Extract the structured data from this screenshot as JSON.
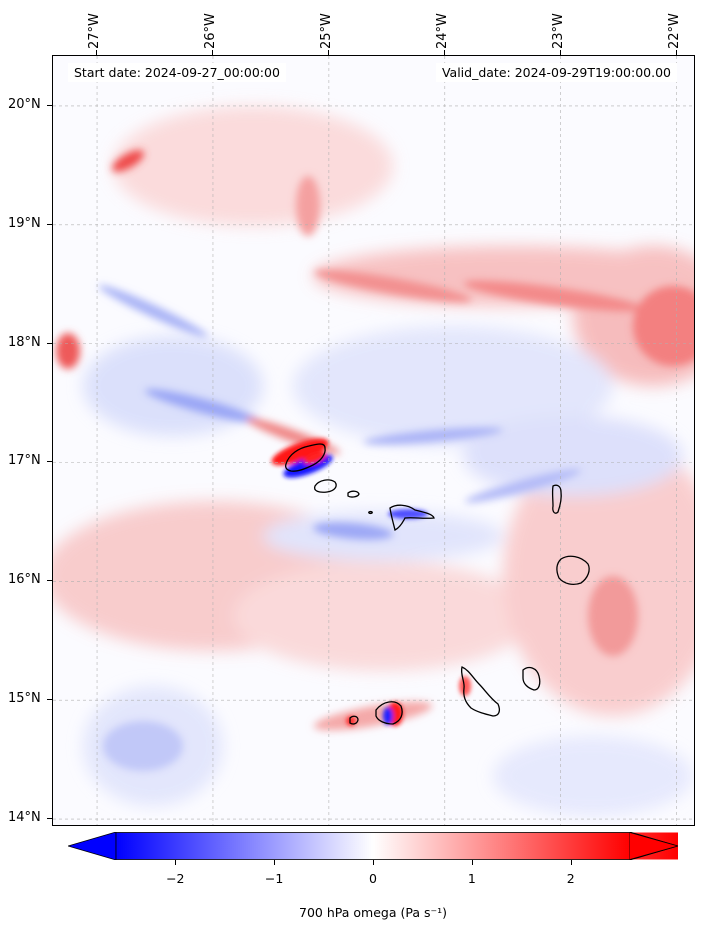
{
  "map": {
    "projection": "plate-carree",
    "extent": {
      "lon_min": -27.38,
      "lon_max": -21.85,
      "lat_min": 13.95,
      "lat_max": 20.42
    },
    "field": "700 hPa omega",
    "start_date_text": "Start date: 2024-09-27_00:00:00",
    "valid_date_text": "Valid_date: 2024-09-29T19:00:00.00",
    "lon_ticks": [
      {
        "value": -27,
        "label": "27°W"
      },
      {
        "value": -26,
        "label": "26°W"
      },
      {
        "value": -25,
        "label": "25°W"
      },
      {
        "value": -24,
        "label": "24°W"
      },
      {
        "value": -23,
        "label": "23°W"
      },
      {
        "value": -22,
        "label": "22°W"
      }
    ],
    "lat_ticks": [
      {
        "value": 20,
        "label": "20°N"
      },
      {
        "value": 19,
        "label": "19°N"
      },
      {
        "value": 18,
        "label": "18°N"
      },
      {
        "value": 17,
        "label": "17°N"
      },
      {
        "value": 16,
        "label": "16°N"
      },
      {
        "value": 15,
        "label": "15°N"
      },
      {
        "value": 14,
        "label": "14°N"
      }
    ],
    "gridlines": true,
    "islands": [
      "Santo Antão",
      "São Vicente",
      "Santa Luzia",
      "São Nicolau",
      "Sal",
      "Boa Vista",
      "Maio",
      "Santiago",
      "Fogo",
      "Brava"
    ]
  },
  "colorbar": {
    "label": "700 hPa omega (Pa s⁻¹)",
    "min": -2.6,
    "max": 2.6,
    "ticks": [
      {
        "value": -2,
        "label": "−2"
      },
      {
        "value": -1,
        "label": "−1"
      },
      {
        "value": 0,
        "label": "0"
      },
      {
        "value": 1,
        "label": "1"
      },
      {
        "value": 2,
        "label": "2"
      }
    ],
    "negative_color": "#0000ff",
    "positive_color": "#ff0000",
    "extend": "both"
  }
}
